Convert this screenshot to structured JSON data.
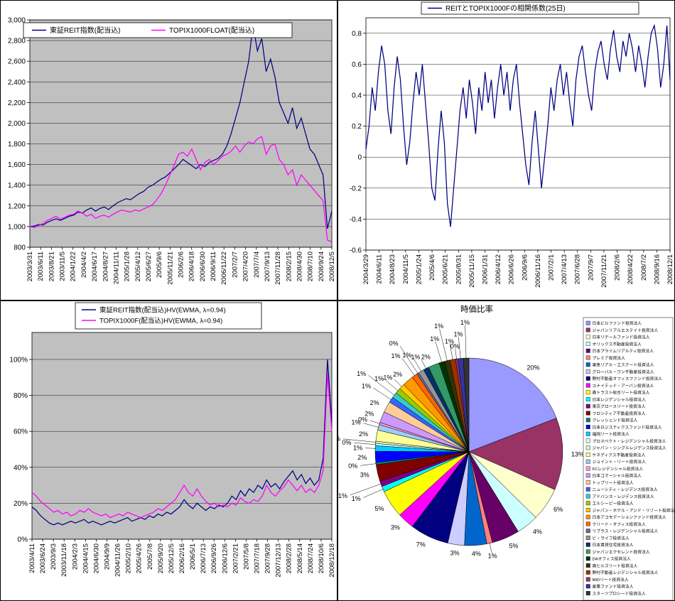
{
  "chart_data": [
    {
      "id": "price",
      "type": "line",
      "title": "",
      "legend": [
        {
          "label": "東証REIT指数(配当込)",
          "color": "#000080"
        },
        {
          "label": "TOPIX1000FLOAT(配当込)",
          "color": "#FF00FF"
        }
      ],
      "plot_bg": "#C0C0C0",
      "grid": true,
      "legend_position": "top-overlay",
      "ylim": [
        800,
        3000
      ],
      "yticks": [
        [
          800,
          "800"
        ],
        [
          1000,
          "1,000"
        ],
        [
          1200,
          "1,200"
        ],
        [
          1400,
          "1,400"
        ],
        [
          1600,
          "1,600"
        ],
        [
          1800,
          "1,800"
        ],
        [
          2000,
          "2,000"
        ],
        [
          2200,
          "2,200"
        ],
        [
          2400,
          "2,400"
        ],
        [
          2600,
          "2,600"
        ],
        [
          2800,
          "2,800"
        ],
        [
          3000,
          "3,000"
        ]
      ],
      "x_labels": [
        "2003/3/31",
        "2003/6/11",
        "2003/8/21",
        "2003/11/5",
        "2004/1/22",
        "2004/4/2",
        "2004/6/17",
        "2004/8/27",
        "2004/11/11",
        "2005/1/28",
        "2005/4/12",
        "2005/6/27",
        "2005/9/6",
        "2005/11/21",
        "2006/2/6",
        "2006/4/18",
        "2006/6/30",
        "2006/9/11",
        "2006/11/22",
        "2007/2/7",
        "2007/4/20",
        "2007/7/4",
        "2007/9/13",
        "2007/11/28",
        "2008/2/15",
        "2008/4/30",
        "2008/7/10",
        "2008/9/24",
        "2008/12/5"
      ],
      "series": [
        {
          "name": "東証REIT指数(配当込)",
          "color": "#000080",
          "values": [
            1000,
            1005,
            1020,
            1015,
            1040,
            1060,
            1075,
            1060,
            1080,
            1100,
            1110,
            1140,
            1130,
            1160,
            1180,
            1150,
            1175,
            1190,
            1165,
            1200,
            1230,
            1250,
            1270,
            1260,
            1290,
            1320,
            1340,
            1380,
            1400,
            1430,
            1460,
            1480,
            1520,
            1560,
            1600,
            1650,
            1620,
            1590,
            1560,
            1600,
            1580,
            1620,
            1640,
            1660,
            1700,
            1780,
            1900,
            2050,
            2200,
            2400,
            2600,
            2950,
            2700,
            2820,
            2500,
            2620,
            2450,
            2200,
            2100,
            2000,
            2150,
            1950,
            2050,
            1900,
            1750,
            1700,
            1600,
            1500,
            980,
            1150
          ]
        },
        {
          "name": "TOPIX1000FLOAT(配当込)",
          "color": "#FF00FF",
          "values": [
            1000,
            990,
            1010,
            1030,
            1060,
            1080,
            1100,
            1070,
            1090,
            1110,
            1120,
            1150,
            1130,
            1100,
            1120,
            1080,
            1100,
            1110,
            1090,
            1120,
            1140,
            1160,
            1150,
            1140,
            1160,
            1150,
            1170,
            1190,
            1210,
            1260,
            1320,
            1400,
            1500,
            1600,
            1700,
            1720,
            1680,
            1750,
            1650,
            1550,
            1620,
            1650,
            1600,
            1640,
            1680,
            1700,
            1730,
            1780,
            1720,
            1780,
            1820,
            1800,
            1850,
            1870,
            1700,
            1780,
            1800,
            1650,
            1600,
            1500,
            1550,
            1400,
            1500,
            1450,
            1400,
            1350,
            1300,
            1250,
            870,
            850
          ]
        }
      ]
    },
    {
      "id": "corr",
      "type": "line",
      "title": "",
      "legend": [
        {
          "label": "REITとTOPIX1000Fの相関係数(25日)",
          "color": "#000080"
        }
      ],
      "plot_bg": "#FFFFFF",
      "grid": true,
      "legend_position": "top",
      "ylim": [
        -0.6,
        0.9
      ],
      "yticks": [
        [
          -0.6,
          "-0.6"
        ],
        [
          -0.4,
          "-0.4"
        ],
        [
          -0.2,
          "-0.2"
        ],
        [
          0,
          "0"
        ],
        [
          0.2,
          "0.2"
        ],
        [
          0.4,
          "0.4"
        ],
        [
          0.6,
          "0.6"
        ],
        [
          0.8,
          "0.8"
        ]
      ],
      "x_labels": [
        "2004/3/29",
        "2004/6/11",
        "2004/8/23",
        "2004/11/5",
        "2005/1/24",
        "2005/4/6",
        "2005/6/21",
        "2005/8/31",
        "2005/11/15",
        "2006/1/31",
        "2006/4/12",
        "2006/6/26",
        "2006/9/6",
        "2006/11/16",
        "2007/2/1",
        "2007/4/13",
        "2007/6/28",
        "2007/9/7",
        "2007/11/21",
        "2008/2/6",
        "2008/4/22",
        "2008/7/2",
        "2008/9/16",
        "2008/12/1"
      ],
      "series": [
        {
          "name": "REITとTOPIX1000Fの相関係数(25日)",
          "color": "#000080",
          "values": [
            0.05,
            0.2,
            0.45,
            0.3,
            0.55,
            0.72,
            0.6,
            0.3,
            0.15,
            0.45,
            0.65,
            0.5,
            0.2,
            -0.05,
            0.1,
            0.35,
            0.55,
            0.4,
            0.6,
            0.35,
            0.1,
            -0.2,
            -0.28,
            0.05,
            0.3,
            0.1,
            -0.3,
            -0.45,
            -0.2,
            0.05,
            0.3,
            0.45,
            0.25,
            0.5,
            0.35,
            0.15,
            0.45,
            0.3,
            0.55,
            0.35,
            0.5,
            0.25,
            0.45,
            0.6,
            0.4,
            0.55,
            0.3,
            0.5,
            0.6,
            0.35,
            0.15,
            -0.05,
            -0.18,
            0.1,
            0.3,
            0.05,
            -0.2,
            0.0,
            0.2,
            0.45,
            0.3,
            0.5,
            0.6,
            0.4,
            0.55,
            0.35,
            0.2,
            0.5,
            0.65,
            0.72,
            0.55,
            0.4,
            0.3,
            0.55,
            0.68,
            0.75,
            0.6,
            0.5,
            0.7,
            0.82,
            0.65,
            0.55,
            0.75,
            0.65,
            0.8,
            0.7,
            0.55,
            0.72,
            0.6,
            0.45,
            0.65,
            0.8,
            0.85,
            0.7,
            0.45,
            0.6,
            0.85,
            0.5
          ]
        }
      ]
    },
    {
      "id": "vol",
      "type": "line",
      "title": "",
      "legend": [
        {
          "label": "東証REIT指数(配当込)HV(EWMA, λ=0.94)",
          "color": "#000080"
        },
        {
          "label": "TOPIX1000F(配当込)HV(EWMA, λ=0.94)",
          "color": "#FF00FF"
        }
      ],
      "plot_bg": "#C0C0C0",
      "grid": true,
      "legend_position": "top-stacked",
      "ylim": [
        0,
        1.15
      ],
      "yticks": [
        [
          0,
          "0%"
        ],
        [
          0.2,
          "20%"
        ],
        [
          0.4,
          "40%"
        ],
        [
          0.6,
          "60%"
        ],
        [
          0.8,
          "80%"
        ],
        [
          1,
          "100%"
        ]
      ],
      "x_labels": [
        "2003/4/11",
        "2003/6/24",
        "2003/9/3",
        "2003/11/18",
        "2004/2/3",
        "2004/4/15",
        "2004/6/30",
        "2004/9/9",
        "2004/11/26",
        "2005/2/10",
        "2005/4/26",
        "2005/7/8",
        "2005/9/20",
        "2005/12/5",
        "2006/2/16",
        "2006/5/1",
        "2006/7/13",
        "2006/9/26",
        "2006/12/6",
        "2007/2/21",
        "2007/5/8",
        "2007/7/18",
        "2007/9/28",
        "2007/12/13",
        "2008/2/28",
        "2008/5/14",
        "2008/7/24",
        "2008/10/6",
        "2008/12/18"
      ],
      "series": [
        {
          "name": "東証REIT指数(配当込)HV(EWMA, λ=0.94)",
          "color": "#000080",
          "values": [
            0.18,
            0.16,
            0.13,
            0.11,
            0.09,
            0.08,
            0.09,
            0.08,
            0.09,
            0.1,
            0.09,
            0.1,
            0.11,
            0.09,
            0.1,
            0.09,
            0.08,
            0.09,
            0.1,
            0.09,
            0.1,
            0.11,
            0.12,
            0.1,
            0.11,
            0.12,
            0.11,
            0.13,
            0.12,
            0.14,
            0.13,
            0.15,
            0.14,
            0.16,
            0.18,
            0.22,
            0.19,
            0.17,
            0.2,
            0.18,
            0.16,
            0.18,
            0.17,
            0.19,
            0.18,
            0.2,
            0.24,
            0.22,
            0.27,
            0.24,
            0.28,
            0.26,
            0.3,
            0.28,
            0.33,
            0.29,
            0.31,
            0.28,
            0.32,
            0.35,
            0.38,
            0.33,
            0.36,
            0.31,
            0.34,
            0.3,
            0.33,
            0.45,
            1.0,
            0.65
          ]
        },
        {
          "name": "TOPIX1000F(配当込)HV(EWMA, λ=0.94)",
          "color": "#FF00FF",
          "values": [
            0.26,
            0.24,
            0.21,
            0.19,
            0.17,
            0.15,
            0.16,
            0.14,
            0.15,
            0.13,
            0.14,
            0.16,
            0.15,
            0.17,
            0.15,
            0.14,
            0.13,
            0.14,
            0.12,
            0.13,
            0.14,
            0.13,
            0.15,
            0.14,
            0.13,
            0.12,
            0.13,
            0.14,
            0.15,
            0.17,
            0.16,
            0.18,
            0.2,
            0.22,
            0.26,
            0.3,
            0.26,
            0.24,
            0.28,
            0.24,
            0.21,
            0.19,
            0.2,
            0.18,
            0.19,
            0.18,
            0.2,
            0.19,
            0.23,
            0.21,
            0.2,
            0.22,
            0.21,
            0.24,
            0.3,
            0.26,
            0.24,
            0.27,
            0.29,
            0.33,
            0.3,
            0.27,
            0.3,
            0.26,
            0.28,
            0.26,
            0.3,
            0.38,
            0.92,
            0.6
          ]
        }
      ]
    },
    {
      "id": "pie",
      "type": "pie",
      "title": "時価比率",
      "legend_position": "right",
      "slices": [
        {
          "name": "日本ビルファンド投資法人",
          "value": 20,
          "label": "20%",
          "color": "#9999FF"
        },
        {
          "name": "ジャパンリアルエステイト投資法人",
          "value": 13,
          "label": "13%",
          "color": "#993366"
        },
        {
          "name": "日本リテールファンド投資法人",
          "value": 6,
          "label": "6%",
          "color": "#FFFFCC"
        },
        {
          "name": "オリックス不動産投資法人",
          "value": 4,
          "label": "4%",
          "color": "#CCFFFF"
        },
        {
          "name": "日本プライムリアルティ投資法人",
          "value": 5,
          "label": "5%",
          "color": "#660066"
        },
        {
          "name": "プレミア投資法人",
          "value": 1,
          "label": "1%",
          "color": "#FF8080"
        },
        {
          "name": "東急リアル・エステート投資法人",
          "value": 4,
          "label": "4%",
          "color": "#0066CC"
        },
        {
          "name": "グローバル・ワン不動産投資法人",
          "value": 3,
          "label": "3%",
          "color": "#CCCCFF"
        },
        {
          "name": "野村不動産オフィスファンド投資法人",
          "value": 7,
          "label": "7%",
          "color": "#000080"
        },
        {
          "name": "ユナイテッド・アーバン投資法人",
          "value": 3,
          "label": "3%",
          "color": "#FF00FF"
        },
        {
          "name": "森トラスト総合リート投資法人",
          "value": 5,
          "label": "5%",
          "color": "#FFFF00"
        },
        {
          "name": "日本レジデンシャル投資法人",
          "value": 1,
          "label": "1%",
          "color": "#00FFFF"
        },
        {
          "name": "東京グロースリート投資法人",
          "value": 1,
          "label": "1%",
          "color": "#800080"
        },
        {
          "name": "フロンティア不動産投資法人",
          "value": 3,
          "label": "3%",
          "color": "#800000"
        },
        {
          "name": "クレッシェンド投資法人",
          "value": 0.4,
          "label": "0%",
          "color": "#008080"
        },
        {
          "name": "日本ロジスティクスファンド投資法人",
          "value": 2,
          "label": "2%",
          "color": "#0000FF"
        },
        {
          "name": "福岡リート投資法人",
          "value": 1,
          "label": "1%",
          "color": "#00CCFF"
        },
        {
          "name": "プロスペクト・レジデンシャル投資法人",
          "value": 0.4,
          "label": "0%",
          "color": "#CCFFFF"
        },
        {
          "name": "ジャパン・シングルレジデンス投資法人",
          "value": 0.4,
          "label": "0%",
          "color": "#CCFFCC"
        },
        {
          "name": "ケネディクス不動産投資法人",
          "value": 2,
          "label": "2%",
          "color": "#FFFF99"
        },
        {
          "name": "ジョイント・リート投資法人",
          "value": 1,
          "label": "1%",
          "color": "#99CCFF"
        },
        {
          "name": "FCレジデンシャル投資法人",
          "value": 0.4,
          "label": "0%",
          "color": "#FF99CC"
        },
        {
          "name": "日本コマーシャル投資法人",
          "value": 2,
          "label": "2%",
          "color": "#CC99FF"
        },
        {
          "name": "トップリート投資法人",
          "value": 2,
          "label": "2%",
          "color": "#FFCC99"
        },
        {
          "name": "ニューシティ・レジデンス投資法人",
          "value": 1,
          "label": "1%",
          "color": "#3366FF"
        },
        {
          "name": "アドバンス・レジデンス投資法人",
          "value": 1,
          "label": "1%",
          "color": "#33CCCC"
        },
        {
          "name": "エルシーピー投資法人",
          "value": 1,
          "label": "1%",
          "color": "#99CC00"
        },
        {
          "name": "ジャパン・ホテル・アンド・リゾート投資法人",
          "value": 1,
          "label": "1%",
          "color": "#FFCC00"
        },
        {
          "name": "日本アコモデーションファンド投資法人",
          "value": 2,
          "label": "2%",
          "color": "#FF9900"
        },
        {
          "name": "クリード・オフィス投資法人",
          "value": 1,
          "label": "1%",
          "color": "#FF6600"
        },
        {
          "name": "リプラス・レジデンシャル投資法人",
          "value": 0.4,
          "label": "0%",
          "color": "#666699"
        },
        {
          "name": "ビ・ライフ投資法人",
          "value": 1,
          "label": "1%",
          "color": "#969696"
        },
        {
          "name": "日本賃貸住宅投資法人",
          "value": 1,
          "label": "1%",
          "color": "#003366"
        },
        {
          "name": "ジャパンエクセレント投資法人",
          "value": 2,
          "label": "2%",
          "color": "#339966"
        },
        {
          "name": "DAオフィス投資法人",
          "value": 1,
          "label": "1%",
          "color": "#003300"
        },
        {
          "name": "森ヒルズリート投資法人",
          "value": 1,
          "label": "1%",
          "color": "#333300"
        },
        {
          "name": "野村不動産レジデンシャル投資法人",
          "value": 1,
          "label": "1%",
          "color": "#993300"
        },
        {
          "name": "MIDリート投資法人",
          "value": 0.4,
          "label": "0%",
          "color": "#993366"
        },
        {
          "name": "産業ファンド投資法人",
          "value": 1,
          "label": "1%",
          "color": "#333399"
        },
        {
          "name": "スターツプロシード投資法人",
          "value": 1,
          "label": "1%",
          "color": "#333333"
        }
      ]
    }
  ]
}
